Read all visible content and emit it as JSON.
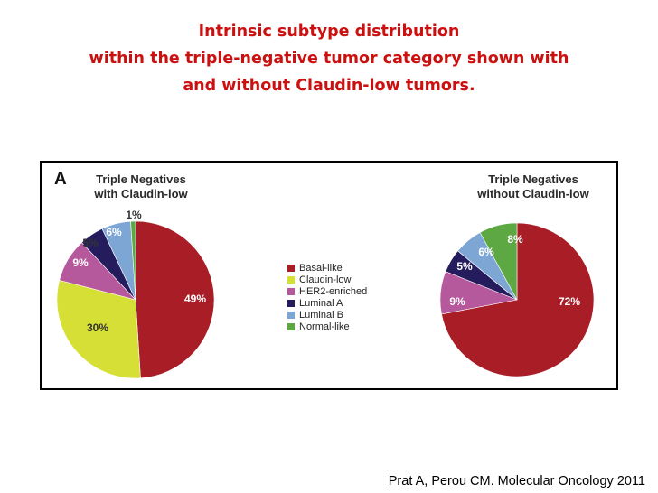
{
  "slide": {
    "title_lines": [
      "Intrinsic subtype distribution",
      "within the triple-negative tumor category shown with",
      "and without Claudin-low tumors."
    ],
    "panel_letter": "A",
    "citation": "Prat A, Perou CM. Molecular Oncology 2011"
  },
  "chart_data": [
    {
      "type": "pie",
      "title_lines": [
        "Triple Negatives",
        "with Claudin-low"
      ],
      "categories": [
        "Basal-like",
        "Claudin-low",
        "HER2-enriched",
        "Luminal A",
        "Luminal B",
        "Normal-like"
      ],
      "values": [
        49,
        30,
        9,
        5,
        6,
        1
      ],
      "labels": [
        "49%",
        "30%",
        "9%",
        "5%",
        "6%",
        "1%"
      ],
      "colors": [
        "#a81d26",
        "#d6df35",
        "#b5589c",
        "#251c5e",
        "#7ea6d4",
        "#5ea843"
      ]
    },
    {
      "type": "pie",
      "title_lines": [
        "Triple Negatives",
        "without Claudin-low"
      ],
      "categories": [
        "Basal-like",
        "HER2-enriched",
        "Luminal A",
        "Luminal B",
        "Normal-like"
      ],
      "values": [
        72,
        9,
        5,
        6,
        8
      ],
      "labels": [
        "72%",
        "9%",
        "5%",
        "6%",
        "8%"
      ],
      "colors": [
        "#a81d26",
        "#b5589c",
        "#251c5e",
        "#7ea6d4",
        "#5ea843"
      ]
    }
  ],
  "legend": {
    "items": [
      {
        "label": "Basal-like",
        "color": "#a81d26"
      },
      {
        "label": "Claudin-low",
        "color": "#d6df35"
      },
      {
        "label": "HER2-enriched",
        "color": "#b5589c"
      },
      {
        "label": "Luminal A",
        "color": "#251c5e"
      },
      {
        "label": "Luminal B",
        "color": "#7ea6d4"
      },
      {
        "label": "Normal-like",
        "color": "#5ea843"
      }
    ]
  }
}
